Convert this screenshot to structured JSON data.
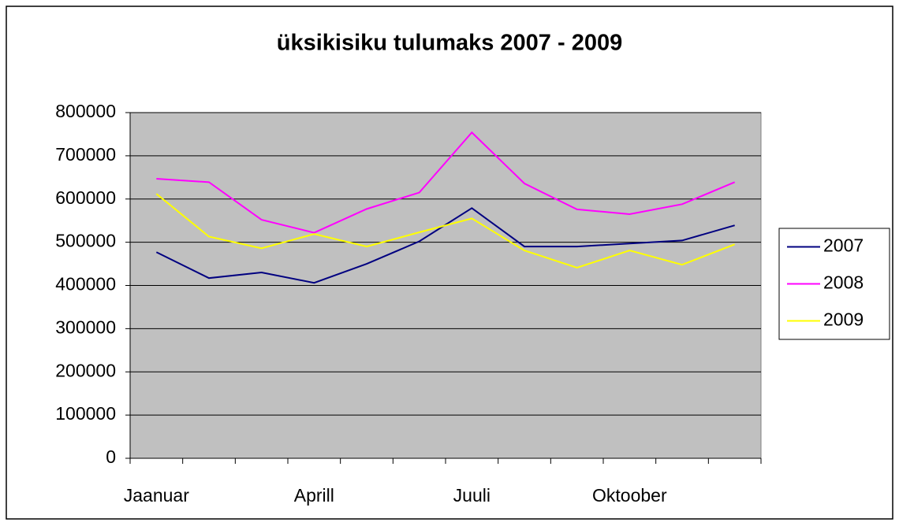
{
  "chart_data": {
    "type": "line",
    "title": "üksikisiku tulumaks 2007 - 2009",
    "categories": [
      "Jaanuar",
      null,
      null,
      "Aprill",
      null,
      null,
      "Juuli",
      null,
      null,
      "Oktoober",
      null,
      null
    ],
    "series": [
      {
        "name": "2007",
        "color": "#000080",
        "values": [
          477000,
          417000,
          430000,
          406000,
          450000,
          502000,
          579000,
          490000,
          490000,
          497000,
          504000,
          539000
        ]
      },
      {
        "name": "2008",
        "color": "#ff00ff",
        "values": [
          647000,
          639000,
          552000,
          522000,
          577000,
          615000,
          754000,
          636000,
          576000,
          565000,
          588000,
          639000
        ]
      },
      {
        "name": "2009",
        "color": "#ffff00",
        "values": [
          612000,
          513000,
          486000,
          519000,
          490000,
          523000,
          555000,
          481000,
          441000,
          481000,
          448000,
          495000
        ]
      }
    ],
    "ylim": [
      0,
      800000
    ],
    "yticks": [
      0,
      100000,
      200000,
      300000,
      400000,
      500000,
      600000,
      700000,
      800000
    ],
    "grid": true,
    "legend": "right"
  }
}
